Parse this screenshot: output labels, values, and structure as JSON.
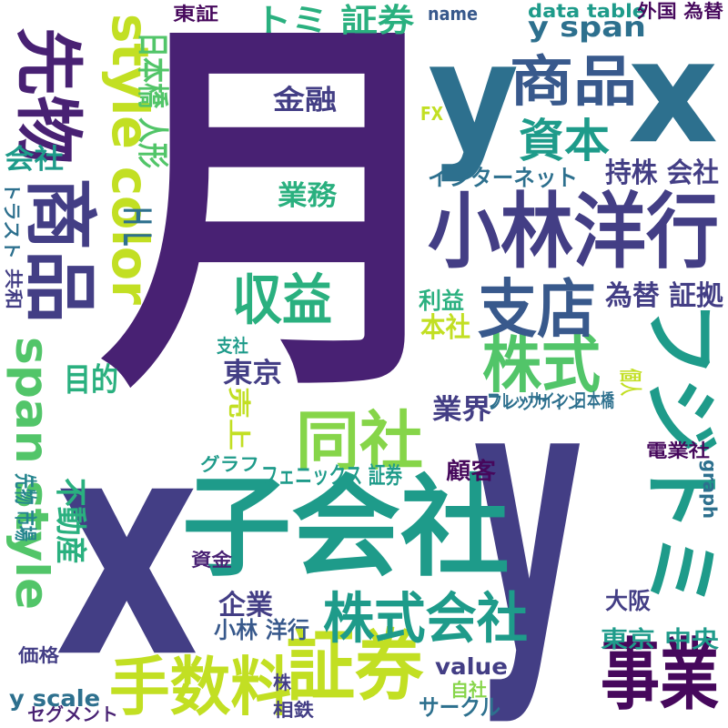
{
  "palette": {
    "dark_purple": "#46085c",
    "purple": "#482173",
    "indigo": "#433e85",
    "blue_slate": "#38598c",
    "teal_blue": "#2d708e",
    "teal": "#25858e",
    "green_teal": "#1e9b8a",
    "green": "#2ab07f",
    "light_green": "#52c569",
    "yellow_green": "#86d549",
    "yellow": "#c2df23"
  },
  "words": [
    {
      "text": "月",
      "color": "purple"
    },
    {
      "text": "x",
      "color": "indigo"
    },
    {
      "text": "y",
      "color": "indigo"
    },
    {
      "text": "y",
      "color": "teal_blue"
    },
    {
      "text": "x",
      "color": "teal_blue"
    },
    {
      "text": "子会社",
      "color": "green_teal"
    },
    {
      "text": "小林洋行",
      "color": "indigo"
    },
    {
      "text": "商品",
      "color": "blue_slate"
    },
    {
      "text": "商品",
      "color": "indigo"
    },
    {
      "text": "先物",
      "color": "purple"
    },
    {
      "text": "証券",
      "color": "yellow"
    },
    {
      "text": "株式会社",
      "color": "green_teal"
    },
    {
      "text": "フジトミ",
      "color": "green_teal"
    },
    {
      "text": "事業",
      "color": "dark_purple"
    },
    {
      "text": "手数料",
      "color": "yellow"
    },
    {
      "text": "株式",
      "color": "light_green"
    },
    {
      "text": "同社",
      "color": "yellow_green"
    },
    {
      "text": "収益",
      "color": "green"
    },
    {
      "text": "支店",
      "color": "blue_slate"
    },
    {
      "text": "資本",
      "color": "green_teal"
    },
    {
      "text": "style color",
      "color": "yellow"
    },
    {
      "text": "span style",
      "color": "light_green"
    },
    {
      "text": "トミ 証券",
      "color": "green"
    },
    {
      "text": "y span",
      "color": "teal_blue"
    },
    {
      "text": "金融",
      "color": "indigo"
    },
    {
      "text": "業務",
      "color": "green"
    },
    {
      "text": "東京",
      "color": "indigo"
    },
    {
      "text": "目的",
      "color": "green"
    },
    {
      "text": "業界",
      "color": "indigo"
    },
    {
      "text": "企業",
      "color": "indigo"
    },
    {
      "text": "為替 証拠",
      "color": "indigo"
    },
    {
      "text": "持株 会社",
      "color": "indigo"
    },
    {
      "text": "インターネット",
      "color": "teal_blue"
    },
    {
      "text": "本社",
      "color": "yellow"
    },
    {
      "text": "利益",
      "color": "green"
    },
    {
      "text": "東京 中央",
      "color": "green_teal"
    },
    {
      "text": "value",
      "color": "indigo"
    },
    {
      "text": "大阪",
      "color": "indigo"
    },
    {
      "text": "自社",
      "color": "yellow_green"
    },
    {
      "text": "サークル",
      "color": "teal_blue"
    },
    {
      "text": "フレッサイン",
      "color": "teal_blue"
    },
    {
      "text": "相鉄",
      "color": "indigo"
    },
    {
      "text": "株",
      "color": "indigo"
    },
    {
      "text": "y scale",
      "color": "teal_blue"
    },
    {
      "text": "セグメント",
      "color": "purple"
    },
    {
      "text": "価格",
      "color": "indigo"
    },
    {
      "text": "小林 洋行",
      "color": "blue_slate"
    },
    {
      "text": "資金",
      "color": "purple"
    },
    {
      "text": "不動産",
      "color": "green"
    },
    {
      "text": "先物 市場",
      "color": "teal"
    },
    {
      "text": "フェニックス 証券",
      "color": "green_teal"
    },
    {
      "text": "顧客",
      "color": "dark_purple"
    },
    {
      "text": "グラフ",
      "color": "green_teal"
    },
    {
      "text": "売上",
      "color": "yellow"
    },
    {
      "text": "支社",
      "color": "green_teal"
    },
    {
      "text": "フレッサイン 日本橋",
      "color": "teal_blue"
    },
    {
      "text": "個人",
      "color": "yellow"
    },
    {
      "text": "電業社",
      "color": "dark_purple"
    },
    {
      "text": "graph",
      "color": "teal_blue"
    },
    {
      "text": "共和",
      "color": "indigo"
    },
    {
      "text": "トラスト",
      "color": "teal_blue"
    },
    {
      "text": "会社",
      "color": "green_teal"
    },
    {
      "text": "ＨＬ",
      "color": "teal_blue"
    },
    {
      "text": "日本橋 人形",
      "color": "light_green"
    },
    {
      "text": "東証",
      "color": "dark_purple"
    },
    {
      "text": "name",
      "color": "blue_slate"
    },
    {
      "text": "data table",
      "color": "green_teal"
    },
    {
      "text": "外国 為替",
      "color": "dark_purple"
    },
    {
      "text": "FX",
      "color": "yellow"
    }
  ]
}
